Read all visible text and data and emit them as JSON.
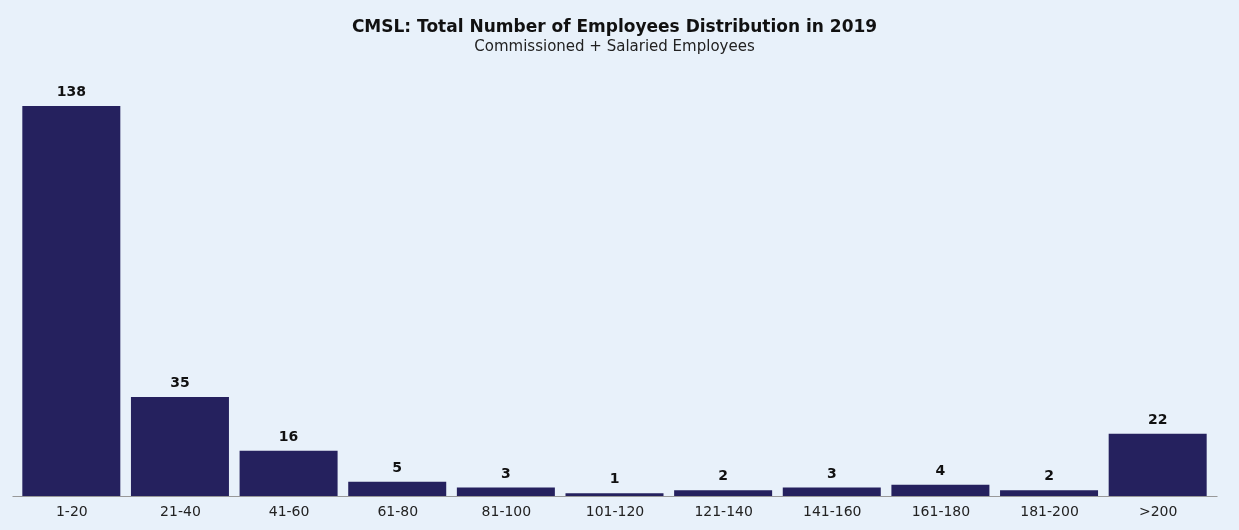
{
  "chart_data": {
    "type": "bar",
    "title": "CMSL: Total Number of Employees Distribution in 2019",
    "subtitle": "Commissioned + Salaried Employees",
    "categories": [
      "1-20",
      "21-40",
      "41-60",
      "61-80",
      "81-100",
      "101-120",
      "121-140",
      "141-160",
      "161-180",
      "181-200",
      ">200"
    ],
    "values": [
      138,
      35,
      16,
      5,
      3,
      1,
      2,
      3,
      4,
      2,
      22
    ],
    "color": "#25215e",
    "data_labels": true,
    "grid": false
  }
}
